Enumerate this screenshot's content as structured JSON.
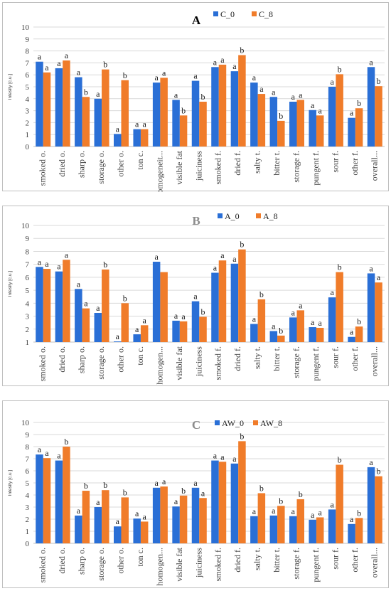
{
  "colors": {
    "series0": "#2a6fd6",
    "series1": "#f07c2a",
    "grid": "#d9d9d9",
    "axis": "#bfbfbf"
  },
  "chart_data": [
    {
      "type": "bar",
      "title": "A",
      "title_color": "#000000",
      "ylabel": "Intesity [c.u.]",
      "ylim": [
        0,
        10
      ],
      "yticks": [
        0,
        1,
        2,
        3,
        4,
        5,
        6,
        7,
        8,
        9,
        10
      ],
      "grid": true,
      "legend_position": "top-right",
      "categories": [
        "smoked o.",
        "dried o.",
        "sharp o.",
        "storage o.",
        "other o.",
        "ton c.",
        "homogeneit...",
        "visible fat",
        "juiciness",
        "smoked f.",
        "dried f.",
        "salty t.",
        "bitter t.",
        "storage f.",
        "pungent f.",
        "sour f.",
        "other f.",
        "overall..."
      ],
      "series": [
        {
          "name": "C_0",
          "values": [
            7.1,
            6.55,
            5.8,
            4.0,
            1.05,
            1.45,
            5.35,
            3.9,
            5.5,
            6.65,
            6.3,
            5.35,
            4.15,
            3.75,
            3.05,
            5.0,
            2.4,
            6.65
          ],
          "labels": [
            "a",
            "a",
            "a",
            "a",
            "a",
            "a",
            "a",
            "a",
            "a",
            "a",
            "a",
            "a",
            "a",
            "a",
            "a",
            "a",
            "a",
            "a"
          ]
        },
        {
          "name": "C_8",
          "values": [
            6.2,
            7.2,
            4.15,
            6.45,
            5.55,
            1.45,
            5.75,
            2.6,
            3.75,
            6.85,
            7.65,
            4.4,
            2.15,
            3.9,
            2.6,
            6.05,
            3.2,
            5.05
          ],
          "labels": [
            "a",
            "a",
            "b",
            "b",
            "b",
            "a",
            "a",
            "b",
            "b",
            "a",
            "b",
            "a",
            "b",
            "a",
            "a",
            "b",
            "b",
            "b"
          ]
        }
      ]
    },
    {
      "type": "bar",
      "title": "B",
      "title_color": "#8c8c8c",
      "ylabel": "Intesity [c.u.]",
      "ylim": [
        1,
        10
      ],
      "yticks": [
        1,
        2,
        3,
        4,
        5,
        6,
        7,
        8,
        9,
        10
      ],
      "grid": true,
      "legend_position": "top-right",
      "categories": [
        "smoked o.",
        "dried o.",
        "sharp o.",
        "storage o.",
        "other o.",
        "ton c.",
        "homogen...",
        "visible fat",
        "juiciness",
        "smoked f.",
        "dried f.",
        "salty t.",
        "bitter t.",
        "storage f.",
        "pungent f.",
        "sour f.",
        "other f.",
        "overall..."
      ],
      "series": [
        {
          "name": "A_0",
          "values": [
            6.8,
            6.45,
            5.1,
            3.25,
            1.05,
            1.6,
            7.2,
            2.65,
            4.15,
            6.35,
            7.05,
            2.4,
            1.85,
            2.9,
            2.15,
            4.45,
            1.4,
            6.3
          ],
          "labels": [
            "a",
            "a",
            "a",
            "a",
            "a",
            "a",
            "a",
            "a",
            "a",
            "a",
            "a",
            "a",
            "a",
            "a",
            "a",
            "a",
            "a",
            "a"
          ]
        },
        {
          "name": "A_8",
          "values": [
            6.65,
            7.35,
            3.6,
            6.6,
            4.0,
            2.3,
            6.4,
            2.6,
            2.95,
            7.3,
            8.15,
            4.3,
            1.5,
            3.45,
            2.1,
            6.4,
            2.2,
            5.6
          ],
          "labels": [
            "a",
            "a",
            "a",
            "b",
            "b",
            "a",
            "",
            "a",
            "b",
            "a",
            "b",
            "b",
            "b",
            "a",
            "a",
            "b",
            "b",
            "a"
          ]
        }
      ]
    },
    {
      "type": "bar",
      "title": "C",
      "title_color": "#8c8c8c",
      "ylabel": "Intesity [c.u.]",
      "ylim": [
        0,
        10
      ],
      "yticks": [
        0,
        1,
        2,
        3,
        4,
        5,
        6,
        7,
        8,
        9,
        10
      ],
      "grid": true,
      "legend_position": "top-right",
      "categories": [
        "smoked o.",
        "dried o.",
        "sharp o.",
        "storage o.",
        "other o.",
        "ton c.",
        "homogen...",
        "visible fat",
        "juiciness",
        "smoked f.",
        "dried f.",
        "salty t.",
        "bitter t.",
        "storage f.",
        "pungent f.",
        "sour f.",
        "other f.",
        "overall..."
      ],
      "series": [
        {
          "name": "AW_0",
          "values": [
            7.35,
            6.85,
            2.3,
            3.0,
            1.4,
            2.05,
            4.6,
            3.05,
            4.6,
            6.85,
            6.6,
            2.25,
            2.3,
            2.25,
            1.95,
            2.8,
            1.6,
            6.3
          ],
          "labels": [
            "a",
            "a",
            "a",
            "a",
            "a",
            "a",
            "a",
            "a",
            "a",
            "a",
            "a",
            "a",
            "a",
            "a",
            "a",
            "a",
            "a",
            "a"
          ]
        },
        {
          "name": "AW_8",
          "values": [
            7.05,
            8.0,
            4.35,
            4.4,
            3.8,
            1.8,
            4.7,
            3.95,
            3.75,
            6.75,
            8.45,
            4.15,
            3.1,
            3.65,
            2.15,
            6.5,
            2.1,
            5.55
          ],
          "labels": [
            "a",
            "b",
            "b",
            "b",
            "b",
            "a",
            "a",
            "b",
            "a",
            "a",
            "b",
            "b",
            "b",
            "b",
            "a",
            "b",
            "b",
            "b"
          ]
        }
      ]
    }
  ]
}
